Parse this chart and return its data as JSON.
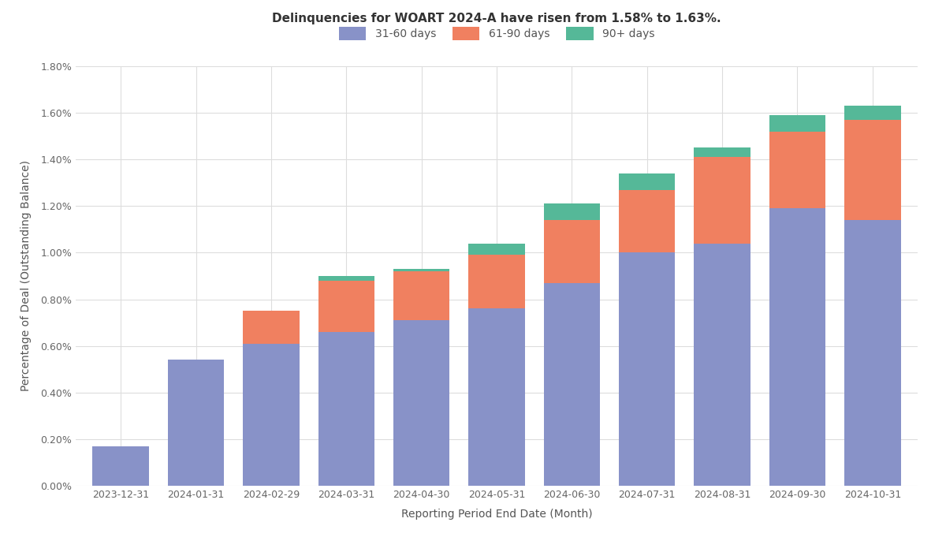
{
  "title": "Delinquencies for WOART 2024-A have risen from 1.58% to 1.63%.",
  "xlabel": "Reporting Period End Date (Month)",
  "ylabel": "Percentage of Deal (Outstanding Balance)",
  "categories": [
    "2023-12-31",
    "2024-01-31",
    "2024-02-29",
    "2024-03-31",
    "2024-04-30",
    "2024-05-31",
    "2024-06-30",
    "2024-07-31",
    "2024-08-31",
    "2024-09-30",
    "2024-10-31"
  ],
  "series": {
    "31-60 days": [
      0.0017,
      0.0054,
      0.0061,
      0.0066,
      0.0071,
      0.0076,
      0.0087,
      0.01,
      0.0104,
      0.0119,
      0.0114
    ],
    "61-90 days": [
      0.0,
      0.0,
      0.0014,
      0.0022,
      0.0021,
      0.0023,
      0.0027,
      0.0027,
      0.0037,
      0.0033,
      0.0043
    ],
    "90+ days": [
      0.0,
      0.0,
      0.0,
      0.0002,
      0.0001,
      0.0005,
      0.0007,
      0.0007,
      0.0004,
      0.0007,
      0.0006
    ]
  },
  "colors": {
    "31-60 days": "#8892c8",
    "61-90 days": "#f08060",
    "90+ days": "#55b898"
  },
  "ylim": [
    0.0,
    0.018
  ],
  "yticks": [
    0.0,
    0.002,
    0.004,
    0.006,
    0.008,
    0.01,
    0.012,
    0.014,
    0.016,
    0.018
  ],
  "background_color": "#ffffff",
  "grid_color": "#dddddd",
  "title_fontsize": 11,
  "axis_label_fontsize": 10,
  "tick_fontsize": 9,
  "legend_fontsize": 10,
  "bar_width": 0.75
}
